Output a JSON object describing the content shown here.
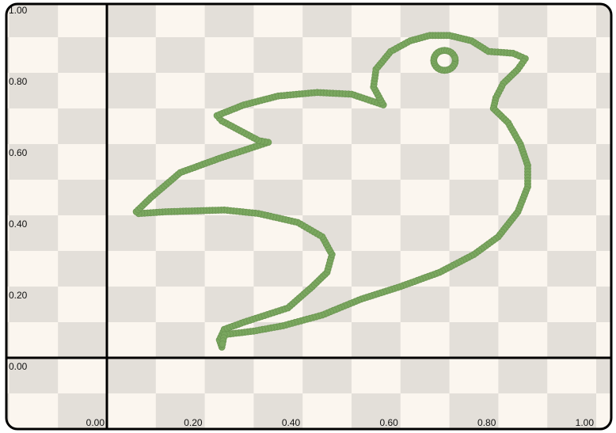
{
  "colors": {
    "frame": "#000000",
    "checker_light": "#fbf6ef",
    "checker_dark": "#e3dfd9",
    "axis": "#000000",
    "point": "#7aa75f",
    "point_stroke": "#6b9552"
  },
  "chart_data": {
    "type": "scatter",
    "title": "",
    "xlabel": "",
    "ylabel": "",
    "xlim": [
      -0.2,
      1.0
    ],
    "ylim": [
      -0.2,
      1.0
    ],
    "grid": false,
    "background": "checkerboard",
    "x_tick_labels": [
      "0.00",
      "0.20",
      "0.40",
      "0.60",
      "0.80",
      "1.00"
    ],
    "y_tick_labels": [
      "0.00",
      "0.20",
      "0.40",
      "0.60",
      "0.80",
      "1.00"
    ],
    "series": [
      {
        "shape": "bird outline",
        "outline_points": [
          [
            0.235,
            0.03
          ],
          [
            0.23,
            0.05
          ],
          [
            0.24,
            0.08
          ],
          [
            0.28,
            0.1
          ],
          [
            0.37,
            0.14
          ],
          [
            0.42,
            0.2
          ],
          [
            0.45,
            0.24
          ],
          [
            0.46,
            0.29
          ],
          [
            0.44,
            0.34
          ],
          [
            0.39,
            0.38
          ],
          [
            0.31,
            0.405
          ],
          [
            0.24,
            0.415
          ],
          [
            0.12,
            0.41
          ],
          [
            0.065,
            0.405
          ],
          [
            0.06,
            0.41
          ],
          [
            0.09,
            0.45
          ],
          [
            0.15,
            0.52
          ],
          [
            0.23,
            0.56
          ],
          [
            0.33,
            0.605
          ],
          [
            0.31,
            0.61
          ],
          [
            0.235,
            0.665
          ],
          [
            0.225,
            0.68
          ],
          [
            0.28,
            0.71
          ],
          [
            0.35,
            0.735
          ],
          [
            0.43,
            0.745
          ],
          [
            0.5,
            0.74
          ],
          [
            0.565,
            0.71
          ],
          [
            0.545,
            0.76
          ],
          [
            0.55,
            0.81
          ],
          [
            0.58,
            0.86
          ],
          [
            0.62,
            0.89
          ],
          [
            0.66,
            0.905
          ],
          [
            0.7,
            0.905
          ],
          [
            0.745,
            0.89
          ],
          [
            0.78,
            0.86
          ],
          [
            0.83,
            0.855
          ],
          [
            0.855,
            0.84
          ],
          [
            0.84,
            0.81
          ],
          [
            0.81,
            0.77
          ],
          [
            0.795,
            0.73
          ],
          [
            0.79,
            0.7
          ],
          [
            0.82,
            0.66
          ],
          [
            0.845,
            0.6
          ],
          [
            0.86,
            0.54
          ],
          [
            0.86,
            0.48
          ],
          [
            0.84,
            0.41
          ],
          [
            0.8,
            0.34
          ],
          [
            0.75,
            0.29
          ],
          [
            0.68,
            0.24
          ],
          [
            0.6,
            0.2
          ],
          [
            0.52,
            0.165
          ],
          [
            0.44,
            0.12
          ],
          [
            0.36,
            0.09
          ],
          [
            0.3,
            0.075
          ],
          [
            0.24,
            0.065
          ]
        ],
        "eye": {
          "cx": 0.69,
          "cy": 0.835,
          "rx": 0.022,
          "ry": 0.028
        }
      }
    ]
  }
}
